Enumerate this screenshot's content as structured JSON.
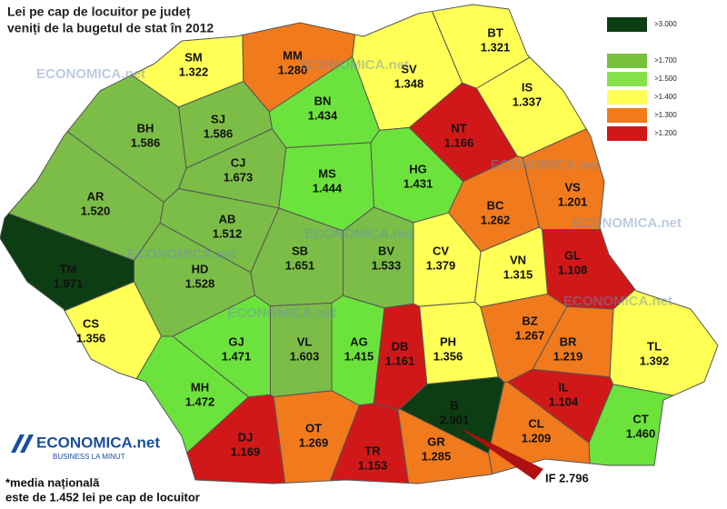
{
  "title": [
    "Lei pe cap de locuitor pe județ",
    "veniți de la bugetul de stat în 2012"
  ],
  "legend": [
    {
      "label": ">3.000",
      "color": "#0d3d12"
    },
    {
      "label": ">1.700",
      "color": "#76c23a"
    },
    {
      "label": ">1.500",
      "color": "#86e04a"
    },
    {
      "label": ">1.400",
      "color": "#ffff55"
    },
    {
      "label": ">1.300",
      "color": "#f07a1c"
    },
    {
      "label": ">1.200",
      "color": "#d11818"
    }
  ],
  "counties": [
    {
      "code": "SM",
      "value": "1.322",
      "color": "#ffff55"
    },
    {
      "code": "MM",
      "value": "1.280",
      "color": "#f07a1c"
    },
    {
      "code": "BT",
      "value": "1.321",
      "color": "#ffff55"
    },
    {
      "code": "SV",
      "value": "1.348",
      "color": "#ffff55"
    },
    {
      "code": "IS",
      "value": "1.337",
      "color": "#ffff55"
    },
    {
      "code": "NT",
      "value": "1.166",
      "color": "#d11818"
    },
    {
      "code": "BH",
      "value": "1.586",
      "color": "#7cbd47"
    },
    {
      "code": "SJ",
      "value": "1.586",
      "color": "#7cbd47"
    },
    {
      "code": "BN",
      "value": "1.434",
      "color": "#6ce33c"
    },
    {
      "code": "CJ",
      "value": "1.673",
      "color": "#7cbd47"
    },
    {
      "code": "MS",
      "value": "1.444",
      "color": "#6ce33c"
    },
    {
      "code": "HG",
      "value": "1.431",
      "color": "#6ce33c"
    },
    {
      "code": "BC",
      "value": "1.262",
      "color": "#f07a1c"
    },
    {
      "code": "VS",
      "value": "1.201",
      "color": "#f07a1c"
    },
    {
      "code": "AR",
      "value": "1.520",
      "color": "#7cbd47"
    },
    {
      "code": "AB",
      "value": "1.512",
      "color": "#7cbd47"
    },
    {
      "code": "TM",
      "value": "1.971",
      "color": "#0d3d12"
    },
    {
      "code": "HD",
      "value": "1.528",
      "color": "#7cbd47"
    },
    {
      "code": "SB",
      "value": "1.651",
      "color": "#7cbd47"
    },
    {
      "code": "BV",
      "value": "1.533",
      "color": "#7cbd47"
    },
    {
      "code": "CV",
      "value": "1.379",
      "color": "#ffff55"
    },
    {
      "code": "VN",
      "value": "1.315",
      "color": "#ffff55"
    },
    {
      "code": "GL",
      "value": "1.108",
      "color": "#d11818"
    },
    {
      "code": "CS",
      "value": "1.356",
      "color": "#ffff55"
    },
    {
      "code": "GJ",
      "value": "1.471",
      "color": "#6ce33c"
    },
    {
      "code": "VL",
      "value": "1.603",
      "color": "#7cbd47"
    },
    {
      "code": "AG",
      "value": "1.415",
      "color": "#6ce33c"
    },
    {
      "code": "DB",
      "value": "1.161",
      "color": "#d11818"
    },
    {
      "code": "PH",
      "value": "1.356",
      "color": "#ffff55"
    },
    {
      "code": "BZ",
      "value": "1.267",
      "color": "#f07a1c"
    },
    {
      "code": "BR",
      "value": "1.219",
      "color": "#f07a1c"
    },
    {
      "code": "TL",
      "value": "1.392",
      "color": "#ffff55"
    },
    {
      "code": "MH",
      "value": "1.472",
      "color": "#6ce33c"
    },
    {
      "code": "IL",
      "value": "1.104",
      "color": "#d11818"
    },
    {
      "code": "B",
      "value": "2.901",
      "color": "#0d3d12"
    },
    {
      "code": "CL",
      "value": "1.209",
      "color": "#f07a1c"
    },
    {
      "code": "CT",
      "value": "1.460",
      "color": "#6ce33c"
    },
    {
      "code": "DJ",
      "value": "1.169",
      "color": "#d11818"
    },
    {
      "code": "OT",
      "value": "1.269",
      "color": "#f07a1c"
    },
    {
      "code": "TR",
      "value": "1.153",
      "color": "#d11818"
    },
    {
      "code": "GR",
      "value": "1.285",
      "color": "#f07a1c"
    }
  ],
  "ilfov": "IF 2.796",
  "watermark": "ECONOMICA.net",
  "tagline": "BUSINESS LA MINUT",
  "note": [
    "*media națională",
    "este de 1.452 lei pe cap de locuitor"
  ]
}
